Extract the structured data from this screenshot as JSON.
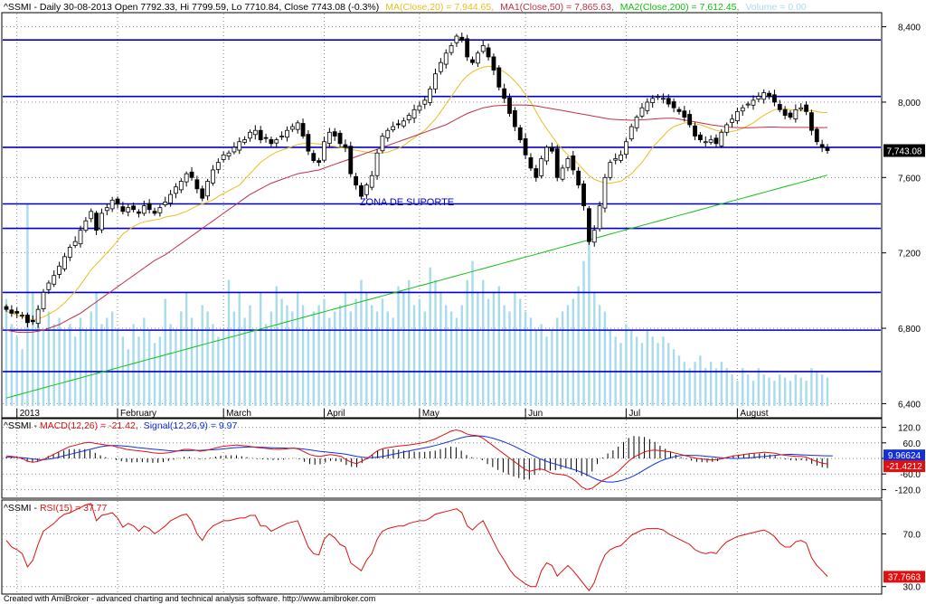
{
  "footer": "Created with AmiBroker - advanced charting and technical analysis software. http://www.amibroker.com",
  "colors": {
    "ma20": "#e8c020",
    "ma50": "#c0304a",
    "ma200": "#10c010",
    "price_line": "#0000cc",
    "volume": "#a8dcec",
    "macd": "#e01010",
    "signal": "#1030e0",
    "rsi": "#e01010",
    "price_marker_bg": "#000000",
    "marker_text": "#ffffff",
    "signal_marker_bg": "#1030e0",
    "macd_marker_bg": "#e01010"
  },
  "chart_data": [
    {
      "type": "candlestick",
      "legend": {
        "prefix": "^SSMI - Daily 30-08-2013 Open 7792.33, Hi 7799.59, Lo 7710.84, Close 7743.08 (-0.3%)",
        "ma20": "MA(Close,20) = 7,944.65,",
        "ma50": "MA1(Close,50) = 7,865.63,",
        "ma200": "MA2(Close,200) = 7,612.45,",
        "volume": "Volume = 0.00"
      },
      "y_ticks": [
        "8,400",
        "8,000",
        "7,600",
        "7,200",
        "6,800",
        "6,400"
      ],
      "y_tick_values": [
        8400,
        8000,
        7600,
        7200,
        6800,
        6400
      ],
      "ylim": [
        6330,
        8470
      ],
      "x_tick_labels": [
        "2013",
        "February",
        "March",
        "April",
        "May",
        "Jun",
        "Jul",
        "August"
      ],
      "x_tick_bars": [
        2,
        21,
        41,
        60,
        78,
        98,
        117,
        138
      ],
      "horizontal_lines": [
        8330,
        8030,
        7760,
        7460,
        7330,
        6990,
        6790,
        6570
      ],
      "annotation": "ZONA DE SUPORTE",
      "last_price_label": "7,743.08",
      "last_price": 7743.08,
      "ma200_last": 7612.45,
      "closes": [
        6900,
        6880,
        6880,
        6870,
        6830,
        6835,
        6900,
        6990,
        7040,
        7080,
        7130,
        7180,
        7230,
        7260,
        7320,
        7370,
        7420,
        7320,
        7410,
        7440,
        7480,
        7460,
        7420,
        7440,
        7430,
        7410,
        7450,
        7430,
        7410,
        7440,
        7470,
        7510,
        7550,
        7580,
        7620,
        7600,
        7540,
        7490,
        7580,
        7640,
        7680,
        7720,
        7730,
        7760,
        7790,
        7800,
        7840,
        7850,
        7800,
        7810,
        7780,
        7800,
        7820,
        7850,
        7870,
        7890,
        7820,
        7740,
        7690,
        7680,
        7790,
        7840,
        7820,
        7780,
        7760,
        7620,
        7560,
        7500,
        7560,
        7610,
        7730,
        7820,
        7850,
        7870,
        7880,
        7900,
        7930,
        7960,
        7980,
        8010,
        8070,
        8150,
        8210,
        8260,
        8300,
        8350,
        8330,
        8240,
        8210,
        8260,
        8300,
        8240,
        8170,
        8080,
        8020,
        7940,
        7870,
        7800,
        7720,
        7650,
        7600,
        7700,
        7760,
        7740,
        7600,
        7650,
        7700,
        7640,
        7560,
        7450,
        7260,
        7320,
        7450,
        7600,
        7680,
        7700,
        7720,
        7790,
        7870,
        7920,
        7970,
        8000,
        8020,
        8030,
        8020,
        7990,
        7970,
        7950,
        7920,
        7880,
        7820,
        7800,
        7790,
        7800,
        7780,
        7840,
        7880,
        7910,
        7950,
        7970,
        7990,
        8010,
        8030,
        8050,
        8030,
        8000,
        7960,
        7930,
        7920,
        7960,
        7970,
        7950,
        7850,
        7790,
        7760,
        7743.08
      ],
      "volumes": [
        170,
        130,
        110,
        90,
        320,
        180,
        160,
        120,
        150,
        130,
        140,
        120,
        130,
        110,
        140,
        120,
        150,
        180,
        130,
        140,
        150,
        120,
        110,
        90,
        130,
        110,
        140,
        120,
        100,
        110,
        170,
        130,
        120,
        150,
        180,
        140,
        120,
        160,
        150,
        130,
        110,
        120,
        200,
        150,
        180,
        140,
        160,
        120,
        180,
        130,
        150,
        190,
        170,
        160,
        150,
        180,
        160,
        120,
        150,
        160,
        170,
        140,
        150,
        160,
        180,
        150,
        170,
        200,
        180,
        160,
        150,
        170,
        150,
        140,
        190,
        180,
        200,
        160,
        170,
        150,
        220,
        200,
        180,
        160,
        150,
        140,
        160,
        200,
        230,
        180,
        200,
        170,
        180,
        190,
        160,
        150,
        180,
        170,
        150,
        140,
        120,
        130,
        110,
        120,
        140,
        150,
        160,
        170,
        190,
        230,
        270,
        180,
        160,
        150,
        120,
        110,
        100,
        130,
        120,
        110,
        100,
        120,
        110,
        100,
        110,
        100,
        90,
        80,
        70,
        60,
        70,
        80,
        60,
        70,
        60,
        70,
        60,
        50,
        40,
        60,
        50,
        40,
        60,
        50,
        45,
        40,
        50,
        45,
        40,
        50,
        45,
        40,
        60,
        55,
        50,
        45
      ],
      "ma20": [
        6890,
        6880,
        6870,
        6860,
        6850,
        6845,
        6850,
        6860,
        6875,
        6890,
        6910,
        6935,
        6965,
        6995,
        7030,
        7070,
        7110,
        7140,
        7170,
        7200,
        7230,
        7265,
        7300,
        7320,
        7340,
        7355,
        7365,
        7370,
        7375,
        7380,
        7390,
        7395,
        7400,
        7410,
        7420,
        7435,
        7450,
        7460,
        7470,
        7480,
        7500,
        7515,
        7530,
        7545,
        7560,
        7590,
        7620,
        7650,
        7680,
        7700,
        7720,
        7735,
        7745,
        7755,
        7765,
        7775,
        7780,
        7785,
        7780,
        7778,
        7776,
        7770,
        7765,
        7760,
        7755,
        7750,
        7745,
        7740,
        7735,
        7730,
        7728,
        7730,
        7735,
        7745,
        7755,
        7770,
        7790,
        7810,
        7830,
        7850,
        7880,
        7910,
        7950,
        7990,
        8030,
        8070,
        8110,
        8140,
        8160,
        8175,
        8185,
        8190,
        8185,
        8175,
        8160,
        8140,
        8110,
        8080,
        8040,
        8000,
        7950,
        7900,
        7860,
        7820,
        7780,
        7750,
        7720,
        7700,
        7670,
        7640,
        7610,
        7590,
        7580,
        7570,
        7570,
        7575,
        7580,
        7600,
        7620,
        7650,
        7680,
        7720,
        7760,
        7790,
        7820,
        7850,
        7870,
        7880,
        7890,
        7890,
        7885,
        7880,
        7870,
        7860,
        7850,
        7845,
        7840,
        7845,
        7850,
        7860,
        7875,
        7890,
        7910,
        7930,
        7945,
        7960,
        7965,
        7965,
        7960,
        7955,
        7955,
        7955,
        7955,
        7950,
        7945,
        7944.65
      ],
      "ma50": [
        6790,
        6785,
        6780,
        6778,
        6778,
        6780,
        6785,
        6790,
        6800,
        6810,
        6820,
        6835,
        6850,
        6865,
        6880,
        6900,
        6920,
        6940,
        6960,
        6980,
        7000,
        7020,
        7040,
        7060,
        7080,
        7100,
        7120,
        7140,
        7160,
        7175,
        7190,
        7210,
        7230,
        7250,
        7270,
        7290,
        7310,
        7330,
        7350,
        7370,
        7390,
        7410,
        7430,
        7450,
        7470,
        7490,
        7510,
        7525,
        7540,
        7555,
        7570,
        7580,
        7590,
        7600,
        7610,
        7620,
        7625,
        7630,
        7635,
        7640,
        7650,
        7660,
        7670,
        7680,
        7690,
        7700,
        7710,
        7720,
        7730,
        7740,
        7750,
        7760,
        7770,
        7780,
        7790,
        7800,
        7810,
        7820,
        7830,
        7840,
        7850,
        7860,
        7870,
        7880,
        7895,
        7910,
        7925,
        7940,
        7950,
        7960,
        7970,
        7975,
        7980,
        7982,
        7983,
        7984,
        7985,
        7985,
        7984,
        7983,
        7980,
        7975,
        7970,
        7965,
        7960,
        7955,
        7950,
        7945,
        7940,
        7935,
        7930,
        7925,
        7920,
        7915,
        7910,
        7908,
        7906,
        7905,
        7904,
        7905,
        7906,
        7908,
        7910,
        7912,
        7914,
        7915,
        7915,
        7910,
        7905,
        7900,
        7895,
        7890,
        7885,
        7880,
        7876,
        7872,
        7868,
        7866,
        7865,
        7864,
        7864,
        7865,
        7866,
        7867,
        7868,
        7868,
        7867,
        7866,
        7866,
        7866,
        7866,
        7866,
        7866,
        7865,
        7865,
        7865.63
      ],
      "ma200_start": 6430
    },
    {
      "type": "line",
      "legend": {
        "prefix": "^SSMI - ",
        "macd": "MACD(12,26) = -21.42,",
        "signal": "Signal(12,26,9) = 9.97"
      },
      "y_ticks": [
        "120.0",
        "60.0",
        "0.0",
        "-60.0",
        "-120.0"
      ],
      "y_tick_values": [
        120,
        60,
        0,
        -60,
        -120
      ],
      "ylim": [
        -150,
        150
      ],
      "signal_label": "9.96624",
      "macd_label": "-21.4212",
      "signal_last": 9.97,
      "macd_last": -21.42,
      "series": [
        {
          "name": "MACD(12,26)",
          "values": [
            10,
            8,
            5,
            0,
            -10,
            -15,
            -12,
            -5,
            5,
            15,
            25,
            35,
            45,
            50,
            55,
            60,
            62,
            58,
            55,
            52,
            50,
            45,
            40,
            35,
            32,
            30,
            28,
            25,
            22,
            20,
            20,
            22,
            25,
            30,
            35,
            35,
            32,
            28,
            30,
            35,
            40,
            45,
            48,
            50,
            52,
            50,
            48,
            45,
            42,
            40,
            38,
            36,
            35,
            36,
            38,
            40,
            35,
            25,
            15,
            10,
            8,
            12,
            15,
            12,
            8,
            -5,
            -15,
            -20,
            -10,
            0,
            15,
            30,
            38,
            42,
            45,
            48,
            50,
            52,
            55,
            58,
            62,
            68,
            75,
            85,
            95,
            105,
            110,
            105,
            95,
            90,
            88,
            80,
            65,
            50,
            35,
            20,
            5,
            -10,
            -25,
            -40,
            -50,
            -45,
            -40,
            -45,
            -55,
            -60,
            -62,
            -65,
            -75,
            -90,
            -110,
            -120,
            -115,
            -100,
            -85,
            -75,
            -65,
            -50,
            -30,
            -10,
            5,
            15,
            25,
            30,
            32,
            30,
            28,
            25,
            20,
            15,
            10,
            5,
            0,
            -2,
            -5,
            -5,
            -5,
            0,
            5,
            10,
            12,
            15,
            18,
            20,
            22,
            24,
            22,
            20,
            15,
            12,
            10,
            8,
            8,
            5,
            -5,
            -12,
            -18,
            -21.42
          ]
        },
        {
          "name": "Signal(12,26,9)",
          "values": [
            5,
            5,
            4,
            3,
            1,
            -2,
            -4,
            -5,
            -3,
            0,
            5,
            10,
            15,
            20,
            25,
            30,
            35,
            40,
            45,
            48,
            50,
            50,
            49,
            47,
            45,
            42,
            40,
            38,
            36,
            34,
            32,
            30,
            29,
            29,
            30,
            30,
            31,
            31,
            32,
            33,
            34,
            36,
            38,
            40,
            42,
            43,
            44,
            44,
            44,
            43,
            42,
            41,
            40,
            40,
            39,
            39,
            38,
            36,
            33,
            30,
            27,
            25,
            23,
            21,
            19,
            16,
            12,
            8,
            5,
            3,
            3,
            5,
            8,
            12,
            16,
            20,
            25,
            29,
            33,
            37,
            41,
            45,
            50,
            55,
            61,
            67,
            74,
            80,
            84,
            86,
            87,
            86,
            83,
            78,
            72,
            65,
            57,
            48,
            38,
            28,
            18,
            8,
            -1,
            -9,
            -16,
            -22,
            -28,
            -34,
            -40,
            -46,
            -54,
            -63,
            -73,
            -82,
            -88,
            -91,
            -91,
            -88,
            -83,
            -76,
            -67,
            -56,
            -44,
            -32,
            -21,
            -11,
            -3,
            3,
            8,
            11,
            12,
            12,
            11,
            10,
            8,
            6,
            4,
            2,
            1,
            0,
            0,
            1,
            2,
            4,
            6,
            8,
            10,
            12,
            14,
            15,
            16,
            15,
            14,
            13,
            12,
            11,
            10.5,
            10,
            9.97
          ]
        }
      ]
    },
    {
      "type": "line",
      "legend": {
        "prefix": "^SSMI - ",
        "rsi": "RSI(15) = 37.77"
      },
      "y_ticks": [
        "70.0",
        "30.0"
      ],
      "y_tick_values": [
        70,
        30
      ],
      "ylim": [
        25,
        95
      ],
      "rsi_label": "37.7663",
      "rsi_last": 37.77,
      "series": [
        {
          "name": "RSI(15)",
          "values": [
            65,
            60,
            58,
            55,
            45,
            50,
            62,
            72,
            75,
            78,
            82,
            85,
            86,
            88,
            90,
            92,
            93,
            80,
            84,
            85,
            86,
            82,
            75,
            78,
            76,
            72,
            76,
            74,
            70,
            73,
            76,
            80,
            82,
            84,
            85,
            80,
            70,
            65,
            72,
            76,
            78,
            80,
            80,
            81,
            82,
            82,
            84,
            84,
            76,
            76,
            72,
            74,
            76,
            78,
            79,
            80,
            70,
            60,
            55,
            54,
            66,
            70,
            67,
            62,
            60,
            48,
            45,
            42,
            50,
            55,
            66,
            72,
            74,
            75,
            76,
            76,
            78,
            79,
            80,
            80,
            82,
            85,
            86,
            87,
            88,
            89,
            86,
            76,
            73,
            77,
            80,
            72,
            64,
            56,
            50,
            43,
            38,
            35,
            32,
            30,
            30,
            42,
            48,
            46,
            38,
            42,
            46,
            42,
            37,
            32,
            27,
            33,
            45,
            54,
            58,
            60,
            61,
            65,
            69,
            71,
            73,
            74,
            74,
            74,
            73,
            70,
            68,
            66,
            64,
            62,
            58,
            56,
            55,
            56,
            55,
            60,
            64,
            66,
            68,
            69,
            70,
            71,
            72,
            73,
            71,
            68,
            63,
            60,
            60,
            64,
            65,
            63,
            52,
            46,
            42,
            37.77
          ]
        }
      ]
    }
  ]
}
